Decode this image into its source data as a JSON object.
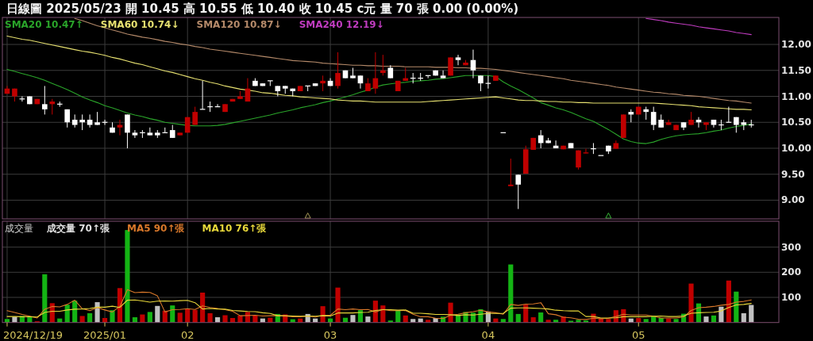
{
  "chart_data": [
    {
      "type": "candlestick",
      "title": "日線圖 2025/05/23 開 10.45 高 10.55 低 10.40 收 10.45 c元 量 70 張 0.00 (0.00%)",
      "categories": [
        null,
        null,
        null,
        null,
        null,
        null,
        null,
        null,
        null,
        null,
        null,
        null,
        null,
        "2025/01",
        null,
        null,
        null,
        null,
        null,
        null,
        null,
        null,
        null,
        null,
        "02",
        null,
        null,
        null,
        null,
        null,
        null,
        null,
        null,
        null,
        null,
        null,
        null,
        null,
        null,
        null,
        null,
        null,
        null,
        "03",
        null,
        null,
        null,
        null,
        null,
        null,
        null,
        null,
        null,
        null,
        null,
        null,
        null,
        null,
        null,
        null,
        null,
        null,
        null,
        null,
        "04",
        null,
        null,
        null,
        null,
        null,
        null,
        null,
        null,
        null,
        null,
        null,
        null,
        null,
        null,
        null,
        null,
        null,
        null,
        null,
        "05",
        null,
        null,
        null,
        null,
        null,
        null,
        null,
        null,
        null,
        null,
        null,
        null,
        null,
        null,
        null
      ],
      "ohlc": [
        [
          11.05,
          11.2,
          11.05,
          11.15
        ],
        [
          11.0,
          11.15,
          10.9,
          11.15
        ],
        [
          10.95,
          11.0,
          10.9,
          10.95
        ],
        [
          11.0,
          11.0,
          10.85,
          10.85
        ],
        [
          10.85,
          10.95,
          10.85,
          10.95
        ],
        [
          10.85,
          11.2,
          10.65,
          10.75
        ],
        [
          10.85,
          10.95,
          10.65,
          10.9
        ],
        [
          10.85,
          10.9,
          10.8,
          10.85
        ],
        [
          10.75,
          10.75,
          10.4,
          10.5
        ],
        [
          10.55,
          10.65,
          10.4,
          10.45
        ],
        [
          10.55,
          10.65,
          10.35,
          10.5
        ],
        [
          10.55,
          10.65,
          10.4,
          10.45
        ],
        [
          10.5,
          10.7,
          10.45,
          10.45
        ],
        [
          10.5,
          10.55,
          10.45,
          10.5
        ],
        [
          10.4,
          10.5,
          10.3,
          10.3
        ],
        [
          10.4,
          10.55,
          10.25,
          10.45
        ],
        [
          10.65,
          10.65,
          10.0,
          10.3
        ],
        [
          10.3,
          10.35,
          10.2,
          10.25
        ],
        [
          10.3,
          10.35,
          10.2,
          10.3
        ],
        [
          10.3,
          10.4,
          10.25,
          10.25
        ],
        [
          10.3,
          10.35,
          10.2,
          10.25
        ],
        [
          10.3,
          10.4,
          10.3,
          10.3
        ],
        [
          10.35,
          10.45,
          10.2,
          10.2
        ],
        [
          10.25,
          10.3,
          10.25,
          10.3
        ],
        [
          10.3,
          10.6,
          10.3,
          10.6
        ],
        [
          10.45,
          10.8,
          10.45,
          10.7
        ],
        [
          10.75,
          11.3,
          10.75,
          10.75
        ],
        [
          10.8,
          10.9,
          10.7,
          10.8
        ],
        [
          10.8,
          10.85,
          10.8,
          10.8
        ],
        [
          10.7,
          10.85,
          10.7,
          10.85
        ],
        [
          10.9,
          10.95,
          10.9,
          10.95
        ],
        [
          10.95,
          11.1,
          10.95,
          11.0
        ],
        [
          10.9,
          11.35,
          10.9,
          11.15
        ],
        [
          11.3,
          11.35,
          11.2,
          11.2
        ],
        [
          11.25,
          11.25,
          11.2,
          11.2
        ],
        [
          11.3,
          11.3,
          11.2,
          11.3
        ],
        [
          11.2,
          11.2,
          11.0,
          11.1
        ],
        [
          11.2,
          11.2,
          11.05,
          11.15
        ],
        [
          11.15,
          11.15,
          11.0,
          11.1
        ],
        [
          11.1,
          11.2,
          11.1,
          11.2
        ],
        [
          11.2,
          11.2,
          11.1,
          11.2
        ],
        [
          11.25,
          11.25,
          11.2,
          11.2
        ],
        [
          11.25,
          11.4,
          11.1,
          11.3
        ],
        [
          11.3,
          11.35,
          11.2,
          11.2
        ],
        [
          11.2,
          11.85,
          11.15,
          11.45
        ],
        [
          11.5,
          11.5,
          11.35,
          11.35
        ],
        [
          11.4,
          11.55,
          11.35,
          11.35
        ],
        [
          11.4,
          11.4,
          11.15,
          11.25
        ],
        [
          11.1,
          11.35,
          11.1,
          11.25
        ],
        [
          11.15,
          11.85,
          11.05,
          11.35
        ],
        [
          11.45,
          11.8,
          11.4,
          11.5
        ],
        [
          11.55,
          11.6,
          11.35,
          11.35
        ],
        [
          11.1,
          11.3,
          11.1,
          11.3
        ],
        [
          11.3,
          11.55,
          11.3,
          11.35
        ],
        [
          11.35,
          11.45,
          11.25,
          11.35
        ],
        [
          11.35,
          11.45,
          11.3,
          11.35
        ],
        [
          11.4,
          11.4,
          11.35,
          11.4
        ],
        [
          11.5,
          11.5,
          11.4,
          11.4
        ],
        [
          11.4,
          11.5,
          11.35,
          11.35
        ],
        [
          11.4,
          11.75,
          11.4,
          11.75
        ],
        [
          11.75,
          11.8,
          11.6,
          11.7
        ],
        [
          11.6,
          11.7,
          11.6,
          11.65
        ],
        [
          11.7,
          11.9,
          11.35,
          11.5
        ],
        [
          11.4,
          11.4,
          11.1,
          11.25
        ],
        [
          11.25,
          11.4,
          11.15,
          11.25
        ],
        [
          11.3,
          11.4,
          11.3,
          11.4
        ],
        [
          10.3,
          10.3,
          10.3,
          10.3
        ],
        [
          9.27,
          9.8,
          9.27,
          9.3
        ],
        [
          9.49,
          9.49,
          8.83,
          9.3
        ],
        [
          9.51,
          10.05,
          9.51,
          9.98
        ],
        [
          9.97,
          10.2,
          9.97,
          10.2
        ],
        [
          10.25,
          10.35,
          10.0,
          10.1
        ],
        [
          10.15,
          10.2,
          10.1,
          10.1
        ],
        [
          10.05,
          10.15,
          10.0,
          10.0
        ],
        [
          9.98,
          10.05,
          9.98,
          10.05
        ],
        [
          10.1,
          10.1,
          10.0,
          10.0
        ],
        [
          9.63,
          9.96,
          9.59,
          9.96
        ],
        [
          9.9,
          9.99,
          9.9,
          9.92
        ],
        [
          9.99,
          10.1,
          9.89,
          9.99
        ],
        [
          9.86,
          9.86,
          9.86,
          9.86
        ],
        [
          10.05,
          10.05,
          9.89,
          9.94
        ],
        [
          9.99,
          10.15,
          9.99,
          10.1
        ],
        [
          10.2,
          10.65,
          10.2,
          10.65
        ],
        [
          10.7,
          10.75,
          10.5,
          10.65
        ],
        [
          10.65,
          10.8,
          10.65,
          10.8
        ],
        [
          10.75,
          10.8,
          10.55,
          10.7
        ],
        [
          10.7,
          10.8,
          10.35,
          10.45
        ],
        [
          10.55,
          10.65,
          10.4,
          10.4
        ],
        [
          10.45,
          10.55,
          10.45,
          10.5
        ],
        [
          10.35,
          10.45,
          10.35,
          10.45
        ],
        [
          10.5,
          10.5,
          10.35,
          10.4
        ],
        [
          10.45,
          10.7,
          10.45,
          10.55
        ],
        [
          10.55,
          10.6,
          10.4,
          10.5
        ],
        [
          10.45,
          10.5,
          10.35,
          10.5
        ],
        [
          10.55,
          10.55,
          10.4,
          10.45
        ],
        [
          10.45,
          10.55,
          10.35,
          10.45
        ],
        [
          10.5,
          10.8,
          10.5,
          10.5
        ],
        [
          10.6,
          10.6,
          10.3,
          10.45
        ],
        [
          10.5,
          10.55,
          10.35,
          10.45
        ],
        [
          10.45,
          10.55,
          10.4,
          10.45
        ]
      ],
      "colors": [
        "#c00000",
        "#c00000",
        "#ffffff",
        "#ffffff",
        "#c00000",
        "#ffffff",
        "#c00000",
        "#ffffff",
        "#ffffff",
        "#ffffff",
        "#ffffff",
        "#ffffff",
        "#ffffff",
        "#ffffff",
        "#ffffff",
        "#c00000",
        "#ffffff",
        "#ffffff",
        "#ffffff",
        "#ffffff",
        "#ffffff",
        "#ffffff",
        "#ffffff",
        "#c00000",
        "#c00000",
        "#c00000",
        "#ffffff",
        "#ffffff",
        "#ffffff",
        "#c00000",
        "#c00000",
        "#c00000",
        "#c00000",
        "#ffffff",
        "#ffffff",
        "#ffffff",
        "#ffffff",
        "#ffffff",
        "#ffffff",
        "#c00000",
        "#ffffff",
        "#ffffff",
        "#c00000",
        "#ffffff",
        "#c00000",
        "#ffffff",
        "#ffffff",
        "#ffffff",
        "#c00000",
        "#c00000",
        "#c00000",
        "#ffffff",
        "#c00000",
        "#c00000",
        "#ffffff",
        "#ffffff",
        "#ffffff",
        "#ffffff",
        "#ffffff",
        "#c00000",
        "#ffffff",
        "#c00000",
        "#ffffff",
        "#ffffff",
        "#ffffff",
        "#c00000",
        "#ffffff",
        "#c00000",
        "#ffffff",
        "#c00000",
        "#c00000",
        "#ffffff",
        "#ffffff",
        "#ffffff",
        "#c00000",
        "#ffffff",
        "#c00000",
        "#c00000",
        "#ffffff",
        "#ffffff",
        "#ffffff",
        "#c00000",
        "#c00000",
        "#ffffff",
        "#c00000",
        "#ffffff",
        "#ffffff",
        "#ffffff",
        "#c00000",
        "#c00000",
        "#ffffff",
        "#c00000",
        "#ffffff",
        "#c00000",
        "#ffffff",
        "#ffffff",
        "#ffffff",
        "#ffffff",
        "#ffffff",
        "#ffffff"
      ],
      "series": [
        {
          "type": "line",
          "name": "SMA20 10.47↑",
          "color": "#2aa52a",
          "values": [
            11.52,
            11.48,
            11.44,
            11.4,
            11.36,
            11.31,
            11.25,
            11.19,
            11.13,
            11.06,
            10.99,
            10.93,
            10.88,
            10.82,
            10.78,
            10.73,
            10.68,
            10.64,
            10.61,
            10.57,
            10.54,
            10.5,
            10.48,
            10.46,
            10.44,
            10.43,
            10.43,
            10.43,
            10.44,
            10.46,
            10.49,
            10.52,
            10.55,
            10.58,
            10.61,
            10.64,
            10.68,
            10.71,
            10.74,
            10.78,
            10.81,
            10.84,
            10.88,
            10.91,
            10.95,
            10.99,
            11.03,
            11.08,
            11.12,
            11.18,
            11.22,
            11.24,
            11.26,
            11.27,
            11.29,
            11.3,
            11.31,
            11.33,
            11.34,
            11.36,
            11.38,
            11.4,
            11.4,
            11.4,
            11.4,
            11.38,
            11.28,
            11.2,
            11.13,
            11.05,
            10.97,
            10.88,
            10.83,
            10.78,
            10.74,
            10.69,
            10.63,
            10.57,
            10.52,
            10.44,
            10.36,
            10.27,
            10.18,
            10.13,
            10.1,
            10.09,
            10.12,
            10.17,
            10.21,
            10.24,
            10.26,
            10.27,
            10.28,
            10.3,
            10.33,
            10.35,
            10.39,
            10.42,
            10.44,
            10.47
          ]
        },
        {
          "type": "line",
          "name": "SMA60 10.74↓",
          "color": "#e6e070",
          "values": [
            12.16,
            12.13,
            12.1,
            12.08,
            12.05,
            12.02,
            11.99,
            11.96,
            11.93,
            11.9,
            11.87,
            11.85,
            11.82,
            11.79,
            11.75,
            11.72,
            11.68,
            11.64,
            11.61,
            11.57,
            11.53,
            11.49,
            11.46,
            11.42,
            11.38,
            11.34,
            11.31,
            11.27,
            11.24,
            11.2,
            11.17,
            11.14,
            11.12,
            11.1,
            11.07,
            11.06,
            11.04,
            11.02,
            11.01,
            10.99,
            10.98,
            10.97,
            10.96,
            10.95,
            10.93,
            10.92,
            10.91,
            10.91,
            10.9,
            10.89,
            10.89,
            10.89,
            10.89,
            10.89,
            10.89,
            10.89,
            10.9,
            10.91,
            10.92,
            10.93,
            10.94,
            10.95,
            10.96,
            10.97,
            10.98,
            10.99,
            10.97,
            10.95,
            10.93,
            10.92,
            10.92,
            10.91,
            10.9,
            10.9,
            10.89,
            10.89,
            10.88,
            10.88,
            10.87,
            10.87,
            10.87,
            10.87,
            10.87,
            10.87,
            10.87,
            10.87,
            10.87,
            10.86,
            10.85,
            10.84,
            10.83,
            10.82,
            10.8,
            10.79,
            10.78,
            10.77,
            10.76,
            10.75,
            10.75,
            10.74
          ]
        },
        {
          "type": "line",
          "name": "SMA120 10.87↓",
          "color": "#b58a6a",
          "values": [
            null,
            null,
            null,
            null,
            null,
            null,
            null,
            null,
            null,
            12.5,
            12.46,
            12.41,
            12.36,
            12.32,
            12.28,
            12.24,
            12.2,
            12.17,
            12.14,
            12.12,
            12.09,
            12.06,
            12.04,
            12.01,
            11.99,
            11.96,
            11.94,
            11.91,
            11.89,
            11.87,
            11.85,
            11.83,
            11.81,
            11.79,
            11.77,
            11.75,
            11.73,
            11.71,
            11.69,
            11.68,
            11.67,
            11.66,
            11.64,
            11.63,
            11.62,
            11.61,
            11.6,
            11.6,
            11.59,
            11.59,
            11.58,
            11.58,
            11.58,
            11.57,
            11.57,
            11.57,
            11.57,
            11.56,
            11.56,
            11.56,
            11.55,
            11.55,
            11.54,
            11.54,
            11.53,
            11.52,
            11.5,
            11.48,
            11.46,
            11.44,
            11.42,
            11.4,
            11.38,
            11.36,
            11.34,
            11.31,
            11.29,
            11.27,
            11.25,
            11.23,
            11.21,
            11.18,
            11.16,
            11.14,
            11.12,
            11.1,
            11.08,
            11.07,
            11.05,
            11.04,
            11.02,
            11.01,
            11.0,
            10.98,
            10.96,
            10.94,
            10.92,
            10.91,
            10.89,
            10.87
          ]
        },
        {
          "type": "line",
          "name": "SMA240 12.19↓",
          "color": "#c03cc0",
          "values": [
            null,
            null,
            null,
            null,
            null,
            null,
            null,
            null,
            null,
            null,
            null,
            null,
            null,
            null,
            null,
            null,
            null,
            null,
            null,
            null,
            null,
            null,
            null,
            null,
            null,
            null,
            null,
            null,
            null,
            null,
            null,
            null,
            null,
            null,
            null,
            null,
            null,
            null,
            null,
            null,
            null,
            null,
            null,
            null,
            null,
            null,
            null,
            null,
            null,
            null,
            null,
            null,
            null,
            null,
            null,
            null,
            null,
            null,
            null,
            null,
            null,
            null,
            null,
            null,
            null,
            null,
            null,
            null,
            null,
            null,
            null,
            null,
            null,
            null,
            null,
            null,
            null,
            null,
            null,
            null,
            null,
            null,
            null,
            null,
            null,
            12.5,
            12.48,
            12.46,
            12.43,
            12.41,
            12.39,
            12.37,
            12.34,
            12.32,
            12.3,
            12.28,
            12.26,
            12.23,
            12.21,
            12.19
          ]
        },
        {
          "type": "scatter",
          "marker": "triangle",
          "color": "#a89a58",
          "values": [
            null,
            null,
            null,
            null,
            null,
            null,
            null,
            null,
            null,
            null,
            null,
            null,
            null,
            null,
            null,
            null,
            null,
            null,
            null,
            null,
            null,
            null,
            null,
            null,
            null,
            null,
            null,
            null,
            null,
            null,
            null,
            null,
            null,
            null,
            null,
            null,
            null,
            null,
            null,
            null,
            8.7,
            null,
            null,
            null,
            null,
            null,
            null,
            null,
            null,
            null,
            null,
            null,
            null,
            null,
            null,
            null,
            null,
            null,
            null,
            null,
            null,
            null,
            null,
            null,
            null,
            null,
            null,
            null,
            null,
            null,
            null,
            null,
            null,
            null,
            null,
            null,
            null,
            null,
            null,
            null,
            null,
            null,
            null,
            null,
            null,
            null,
            null,
            null,
            null,
            null,
            null,
            null,
            null,
            null,
            null,
            null,
            null,
            null,
            null,
            null
          ]
        },
        {
          "type": "scatter",
          "marker": "triangle",
          "color": "#38b838",
          "values": [
            null,
            null,
            null,
            null,
            null,
            null,
            null,
            null,
            null,
            null,
            null,
            null,
            null,
            null,
            null,
            null,
            null,
            null,
            null,
            null,
            null,
            null,
            null,
            null,
            null,
            null,
            null,
            null,
            null,
            null,
            null,
            null,
            null,
            null,
            null,
            null,
            null,
            null,
            null,
            null,
            null,
            null,
            null,
            null,
            null,
            null,
            null,
            null,
            null,
            null,
            null,
            null,
            null,
            null,
            null,
            null,
            null,
            null,
            null,
            null,
            null,
            null,
            null,
            null,
            null,
            null,
            null,
            null,
            null,
            null,
            null,
            null,
            null,
            null,
            null,
            null,
            null,
            null,
            null,
            null,
            8.7,
            null,
            null,
            null,
            null,
            null,
            null,
            null,
            null,
            null,
            null,
            null,
            null,
            null,
            null,
            null,
            null,
            null,
            null,
            null
          ]
        }
      ],
      "ylim": [
        8.64,
        12.52
      ],
      "yticks": [
        {
          "value": 9,
          "label": "9.00"
        },
        {
          "value": 9.5,
          "label": "9.50"
        },
        {
          "value": 10,
          "label": "10.00"
        },
        {
          "value": 10.5,
          "label": "10.50"
        },
        {
          "value": 11,
          "label": "11.00"
        },
        {
          "value": 11.5,
          "label": "11.50"
        },
        {
          "value": 12,
          "label": "12.00"
        }
      ],
      "grid": true,
      "legend": "top left",
      "tick_labels": "y"
    },
    {
      "type": "bar",
      "title": "成交量",
      "categories": [
        null,
        null,
        null,
        null,
        null,
        null,
        null,
        null,
        null,
        null,
        null,
        null,
        null,
        "2025/01",
        null,
        null,
        null,
        null,
        null,
        null,
        null,
        null,
        null,
        null,
        "02",
        null,
        null,
        null,
        null,
        null,
        null,
        null,
        null,
        null,
        null,
        null,
        null,
        null,
        null,
        null,
        null,
        null,
        null,
        "03",
        null,
        null,
        null,
        null,
        null,
        null,
        null,
        null,
        null,
        null,
        null,
        null,
        null,
        null,
        null,
        null,
        null,
        null,
        null,
        null,
        "04",
        null,
        null,
        null,
        null,
        null,
        null,
        null,
        null,
        null,
        null,
        null,
        null,
        null,
        null,
        null,
        null,
        null,
        null,
        null,
        "05",
        null,
        null,
        null,
        null,
        null,
        null,
        null,
        null,
        null,
        null,
        null,
        null,
        null,
        null,
        null
      ],
      "annotations": [
        "2024/12/19"
      ],
      "series": [
        {
          "name": "成交量 70↑張",
          "values": [
            14,
            23,
            26,
            21,
            5,
            192,
            77,
            16,
            71,
            87,
            26,
            37,
            81,
            18,
            49,
            137,
            368,
            21,
            32,
            42,
            66,
            47,
            68,
            39,
            55,
            50,
            119,
            37,
            21,
            29,
            18,
            28,
            42,
            28,
            16,
            19,
            34,
            32,
            13,
            16,
            34,
            16,
            65,
            16,
            139,
            19,
            30,
            49,
            24,
            87,
            68,
            8,
            47,
            28,
            14,
            16,
            11,
            18,
            23,
            79,
            32,
            42,
            39,
            53,
            44,
            16,
            14,
            231,
            34,
            71,
            21,
            40,
            11,
            11,
            24,
            7,
            11,
            8,
            35,
            16,
            14,
            49,
            53,
            16,
            18,
            14,
            26,
            18,
            16,
            14,
            35,
            155,
            76,
            24,
            28,
            63,
            167,
            123,
            37,
            70
          ],
          "colors": [
            "#14b414",
            "#c0c0c0",
            "#14b414",
            "#14b414",
            "#c00000",
            "#14b414",
            "#c00000",
            "#14b414",
            "#14b414",
            "#14b414",
            "#c00000",
            "#14b414",
            "#c0c0c0",
            "#c00000",
            "#14b414",
            "#c00000",
            "#14b414",
            "#14b414",
            "#c00000",
            "#14b414",
            "#c0c0c0",
            "#c00000",
            "#14b414",
            "#c00000",
            "#c00000",
            "#c00000",
            "#c00000",
            "#c00000",
            "#c0c0c0",
            "#c00000",
            "#c00000",
            "#c00000",
            "#c00000",
            "#c00000",
            "#c0c0c0",
            "#c00000",
            "#14b414",
            "#c00000",
            "#14b414",
            "#c00000",
            "#c0c0c0",
            "#c0c0c0",
            "#c00000",
            "#14b414",
            "#c00000",
            "#14b414",
            "#c0c0c0",
            "#14b414",
            "#c0c0c0",
            "#c00000",
            "#c00000",
            "#14b414",
            "#14b414",
            "#c00000",
            "#c0c0c0",
            "#c0c0c0",
            "#c00000",
            "#c0c0c0",
            "#14b414",
            "#c00000",
            "#14b414",
            "#14b414",
            "#14b414",
            "#14b414",
            "#c0c0c0",
            "#c00000",
            "#14b414",
            "#14b414",
            "#14b414",
            "#c00000",
            "#c00000",
            "#14b414",
            "#c00000",
            "#14b414",
            "#c00000",
            "#14b414",
            "#14b414",
            "#14b414",
            "#c00000",
            "#c00000",
            "#c00000",
            "#c00000",
            "#c00000",
            "#c0c0c0",
            "#c00000",
            "#14b414",
            "#14b414",
            "#14b414",
            "#c00000",
            "#14b414",
            "#14b414",
            "#c00000",
            "#14b414",
            "#c0c0c0",
            "#14b414",
            "#c0c0c0",
            "#c00000",
            "#14b414",
            "#c0c0c0",
            "#c0c0c0"
          ]
        },
        {
          "type": "line",
          "name": "MA5 90↑張",
          "color": "#d9782a",
          "values": [
            47,
            40,
            32,
            25,
            18,
            53,
            64,
            62,
            72,
            89,
            55,
            47,
            60,
            50,
            42,
            64,
            131,
            119,
            121,
            120,
            106,
            42,
            51,
            52,
            55,
            52,
            66,
            60,
            56,
            51,
            45,
            27,
            28,
            29,
            26,
            27,
            28,
            26,
            23,
            23,
            26,
            22,
            29,
            29,
            54,
            51,
            54,
            51,
            52,
            42,
            52,
            47,
            47,
            48,
            33,
            23,
            23,
            17,
            16,
            29,
            33,
            39,
            43,
            49,
            42,
            39,
            33,
            72,
            68,
            73,
            74,
            79,
            35,
            31,
            21,
            19,
            13,
            12,
            17,
            15,
            17,
            24,
            33,
            30,
            30,
            30,
            25,
            18,
            18,
            18,
            22,
            48,
            59,
            61,
            64,
            69,
            72,
            81,
            84,
            90
          ]
        },
        {
          "type": "line",
          "name": "MA10 76↑張",
          "color": "#e8d83a",
          "values": [
            24,
            24,
            23,
            23,
            22,
            40,
            45,
            45,
            50,
            53,
            54,
            56,
            61,
            61,
            65,
            60,
            89,
            90,
            86,
            81,
            85,
            86,
            85,
            87,
            88,
            79,
            54,
            56,
            54,
            53,
            48,
            46,
            44,
            43,
            39,
            36,
            27,
            27,
            26,
            25,
            26,
            25,
            27,
            26,
            38,
            38,
            38,
            40,
            41,
            48,
            51,
            51,
            49,
            50,
            37,
            37,
            35,
            32,
            32,
            31,
            28,
            31,
            30,
            33,
            36,
            36,
            36,
            57,
            58,
            58,
            57,
            56,
            54,
            49,
            47,
            46,
            46,
            24,
            24,
            18,
            18,
            19,
            23,
            23,
            23,
            23,
            25,
            26,
            24,
            24,
            26,
            37,
            39,
            40,
            41,
            46,
            60,
            70,
            72,
            76
          ]
        }
      ],
      "ylim": [
        0,
        403
      ],
      "yticks": [
        100,
        200,
        300
      ],
      "grid": true,
      "legend": "top left"
    }
  ]
}
